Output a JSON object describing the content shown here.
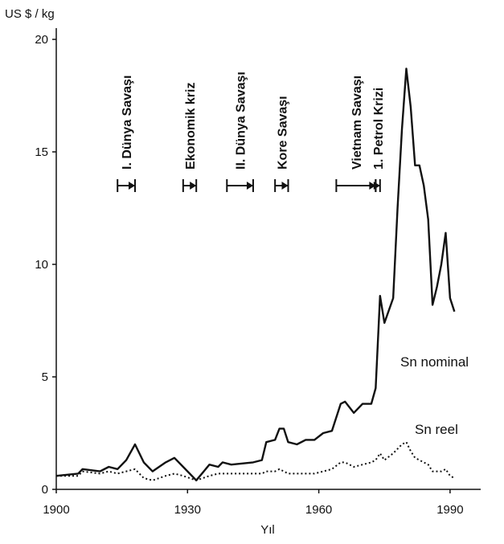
{
  "chart_data": {
    "type": "line",
    "y_label": "US $ / kg",
    "x_label": "Yıl",
    "xlim": [
      1900,
      1997
    ],
    "xticks": [
      1900,
      1930,
      1960,
      1990
    ],
    "ylim": [
      0,
      20.5
    ],
    "yticks": [
      0,
      5,
      10,
      15,
      20
    ],
    "grid": false,
    "x": [
      1900,
      1905,
      1906,
      1910,
      1912,
      1914,
      1916,
      1918,
      1920,
      1922,
      1925,
      1927,
      1929,
      1932,
      1935,
      1937,
      1938,
      1940,
      1945,
      1947,
      1948,
      1950,
      1951,
      1952,
      1953,
      1955,
      1957,
      1959,
      1961,
      1963,
      1965,
      1966,
      1968,
      1970,
      1972,
      1973,
      1974,
      1975,
      1977,
      1978,
      1979,
      1980,
      1981,
      1982,
      1983,
      1984,
      1985,
      1986,
      1987,
      1988,
      1989,
      1990,
      1991
    ],
    "series": [
      {
        "name": "Sn nominal",
        "color": "#111111",
        "style": "solid",
        "values": [
          0.6,
          0.7,
          0.9,
          0.8,
          1.0,
          0.9,
          1.3,
          2.0,
          1.2,
          0.8,
          1.2,
          1.4,
          1.0,
          0.4,
          1.1,
          1.0,
          1.2,
          1.1,
          1.2,
          1.3,
          2.1,
          2.2,
          2.7,
          2.7,
          2.1,
          2.0,
          2.2,
          2.2,
          2.5,
          2.6,
          3.8,
          3.9,
          3.4,
          3.8,
          3.8,
          4.5,
          8.6,
          7.4,
          8.5,
          12.5,
          16.0,
          18.7,
          17.0,
          14.4,
          14.4,
          13.5,
          12.0,
          8.2,
          9.0,
          10.0,
          11.4,
          8.5,
          7.9
        ]
      },
      {
        "name": "Sn reel",
        "color": "#111111",
        "style": "dotted",
        "values": [
          0.6,
          0.6,
          0.8,
          0.7,
          0.8,
          0.7,
          0.8,
          0.9,
          0.5,
          0.4,
          0.6,
          0.7,
          0.6,
          0.4,
          0.6,
          0.7,
          0.7,
          0.7,
          0.7,
          0.7,
          0.8,
          0.8,
          0.9,
          0.8,
          0.7,
          0.7,
          0.7,
          0.7,
          0.8,
          0.9,
          1.2,
          1.2,
          1.0,
          1.1,
          1.2,
          1.3,
          1.6,
          1.3,
          1.6,
          1.8,
          2.0,
          2.1,
          1.7,
          1.4,
          1.3,
          1.2,
          1.1,
          0.8,
          0.8,
          0.8,
          0.9,
          0.6,
          0.5
        ]
      }
    ],
    "annotations": [
      {
        "text": "I. Dünya Savaşı",
        "start": 1914,
        "end": 1918
      },
      {
        "text": "Ekonomik kriz",
        "start": 1929,
        "end": 1932
      },
      {
        "text": "II. Dünya Savaşı",
        "start": 1939,
        "end": 1945
      },
      {
        "text": "Kore Savaşı",
        "start": 1950,
        "end": 1953
      },
      {
        "text": "Vietnam Savaşı",
        "start": 1964,
        "end": 1973
      },
      {
        "text": "1. Petrol Krizi",
        "start": 1973,
        "end": 1974
      }
    ]
  }
}
